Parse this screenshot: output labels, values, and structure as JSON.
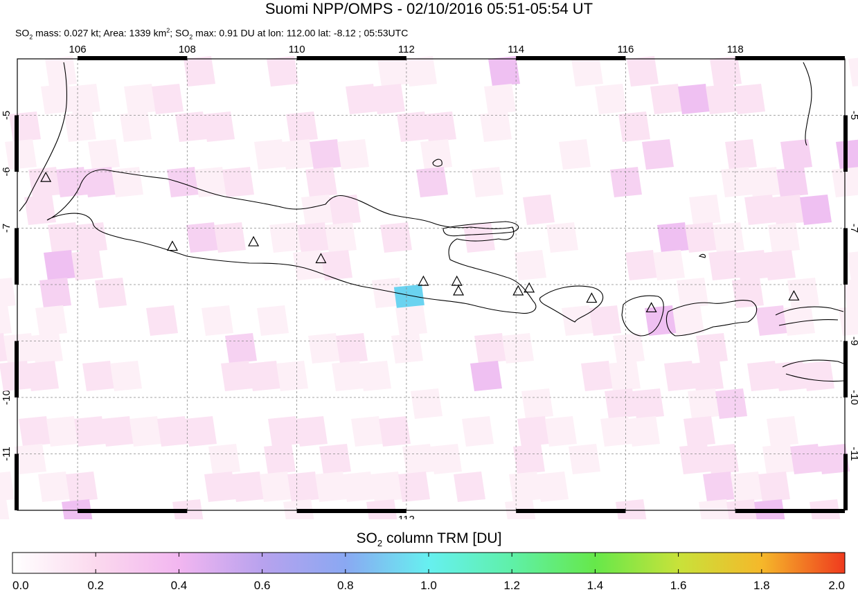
{
  "header": {
    "title": "Suomi NPP/OMPS - 02/10/2016 05:51-05:54 UT",
    "stats": {
      "so2_mass_label": "SO",
      "so2_mass_rest": " mass: 0.027 kt; Area: 1339 km",
      "area_sup": "2",
      "mid": "; SO",
      "max_rest": " max: 0.91 DU at lon: 112.00 lat: -8.12 ; 05:53UTC",
      "sub2": "2"
    }
  },
  "map": {
    "lon_range": [
      104.9,
      120.0
    ],
    "lat_range": [
      -12.0,
      -4.0
    ],
    "lon_ticks": [
      106,
      108,
      110,
      112,
      114,
      116,
      118
    ],
    "lat_ticks": [
      -5,
      -6,
      -7,
      -8,
      -9,
      -10,
      -11
    ],
    "grid": true,
    "volcanoes": [
      {
        "lon": 105.42,
        "lat": -6.1
      },
      {
        "lon": 107.73,
        "lat": -7.32
      },
      {
        "lon": 109.21,
        "lat": -7.24
      },
      {
        "lon": 110.44,
        "lat": -7.54
      },
      {
        "lon": 112.31,
        "lat": -7.94
      },
      {
        "lon": 112.92,
        "lat": -7.94
      },
      {
        "lon": 112.95,
        "lat": -8.11
      },
      {
        "lon": 114.04,
        "lat": -8.11
      },
      {
        "lon": 114.24,
        "lat": -8.06
      },
      {
        "lon": 115.38,
        "lat": -8.24
      },
      {
        "lon": 116.47,
        "lat": -8.41
      },
      {
        "lon": 119.07,
        "lat": -8.2
      }
    ],
    "so2_max_pixel": {
      "lon": 112.0,
      "lat": -8.12,
      "value": 0.91,
      "color": "#6ad3f0"
    },
    "pixel_colors": [
      "#fdf0f7",
      "#fbe3f3",
      "#f6d2f2",
      "#efc0f2"
    ]
  },
  "colorbar": {
    "title_main": "SO",
    "title_sub": "2",
    "title_rest": " column TRM [DU]",
    "range": [
      0.0,
      2.0
    ],
    "tick_labels": [
      "0.0",
      "0.2",
      "0.4",
      "0.6",
      "0.8",
      "1.0",
      "1.2",
      "1.4",
      "1.6",
      "1.8",
      "2.0"
    ],
    "stops": [
      {
        "v": 0.0,
        "c": "#ffffff"
      },
      {
        "v": 0.2,
        "c": "#fbd9ee"
      },
      {
        "v": 0.4,
        "c": "#f2b6f0"
      },
      {
        "v": 0.6,
        "c": "#b8a2ee"
      },
      {
        "v": 0.8,
        "c": "#8aa8f2"
      },
      {
        "v": 1.0,
        "c": "#66f0f0"
      },
      {
        "v": 1.2,
        "c": "#5ff0a8"
      },
      {
        "v": 1.4,
        "c": "#66e84a"
      },
      {
        "v": 1.6,
        "c": "#c8e23a"
      },
      {
        "v": 1.8,
        "c": "#f5b82a"
      },
      {
        "v": 2.0,
        "c": "#ef3a1e"
      }
    ]
  }
}
